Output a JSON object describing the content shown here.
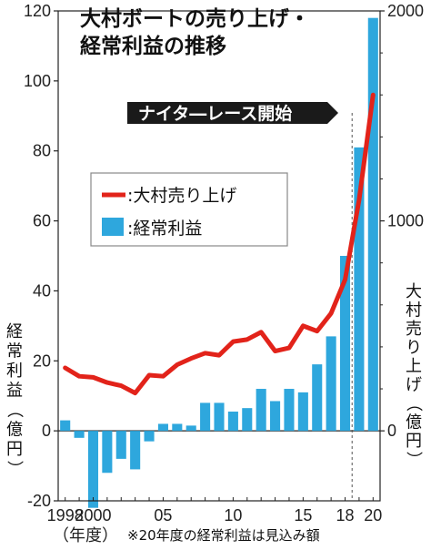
{
  "chart_data": {
    "type": "bar",
    "title": [
      "大村ボートの売り上げ・",
      "経常利益の推移"
    ],
    "x": [
      1998,
      1999,
      2000,
      2001,
      2002,
      2003,
      2004,
      2005,
      2006,
      2007,
      2008,
      2009,
      2010,
      2011,
      2012,
      2013,
      2014,
      2015,
      2016,
      2017,
      2018,
      2019,
      2020
    ],
    "x_tick_labels": [
      {
        "x": 1998,
        "label": "1998"
      },
      {
        "x": 2000,
        "label": "2000"
      },
      {
        "x": 2005,
        "label": "05"
      },
      {
        "x": 2010,
        "label": "10"
      },
      {
        "x": 2015,
        "label": "15"
      },
      {
        "x": 2018,
        "label": "18"
      },
      {
        "x": 2020,
        "label": "20"
      }
    ],
    "x_unit_label": "（年度）",
    "series": [
      {
        "name": "経常利益",
        "chart_type": "bar",
        "axis": "left",
        "color": "#2ea7dd",
        "values": [
          3,
          -2,
          -22,
          -12,
          -8,
          -11,
          -3,
          2,
          2,
          1.5,
          8,
          8,
          5.5,
          6.5,
          12,
          8.5,
          12,
          11,
          19,
          27,
          50,
          81,
          118
        ]
      },
      {
        "name": "大村売り上げ",
        "chart_type": "line",
        "axis": "right",
        "color": "#e2231a",
        "values": [
          300,
          260,
          255,
          230,
          215,
          180,
          265,
          260,
          315,
          345,
          370,
          360,
          425,
          435,
          470,
          380,
          395,
          500,
          475,
          560,
          720,
          1100,
          1600
        ]
      }
    ],
    "left_axis": {
      "label": "経常利益（億円）",
      "ylim": [
        -20,
        120
      ],
      "ticks": [
        "-20",
        "0",
        "20",
        "40",
        "60",
        "80",
        "100",
        "120"
      ]
    },
    "right_axis": {
      "label": "大村売り上げ（億円）",
      "ylim": [
        0,
        2000
      ],
      "ticks": [
        "0",
        "1000",
        "2000"
      ]
    },
    "legend": {
      "position": "upper-left",
      "entries": [
        ":大村売り上げ",
        ":経常利益"
      ]
    },
    "annotation": {
      "text": "ナイタ―レース開始",
      "x": 2018,
      "marker": "dashed vertical line"
    },
    "note": "※20年度の経常利益は見込み額"
  }
}
